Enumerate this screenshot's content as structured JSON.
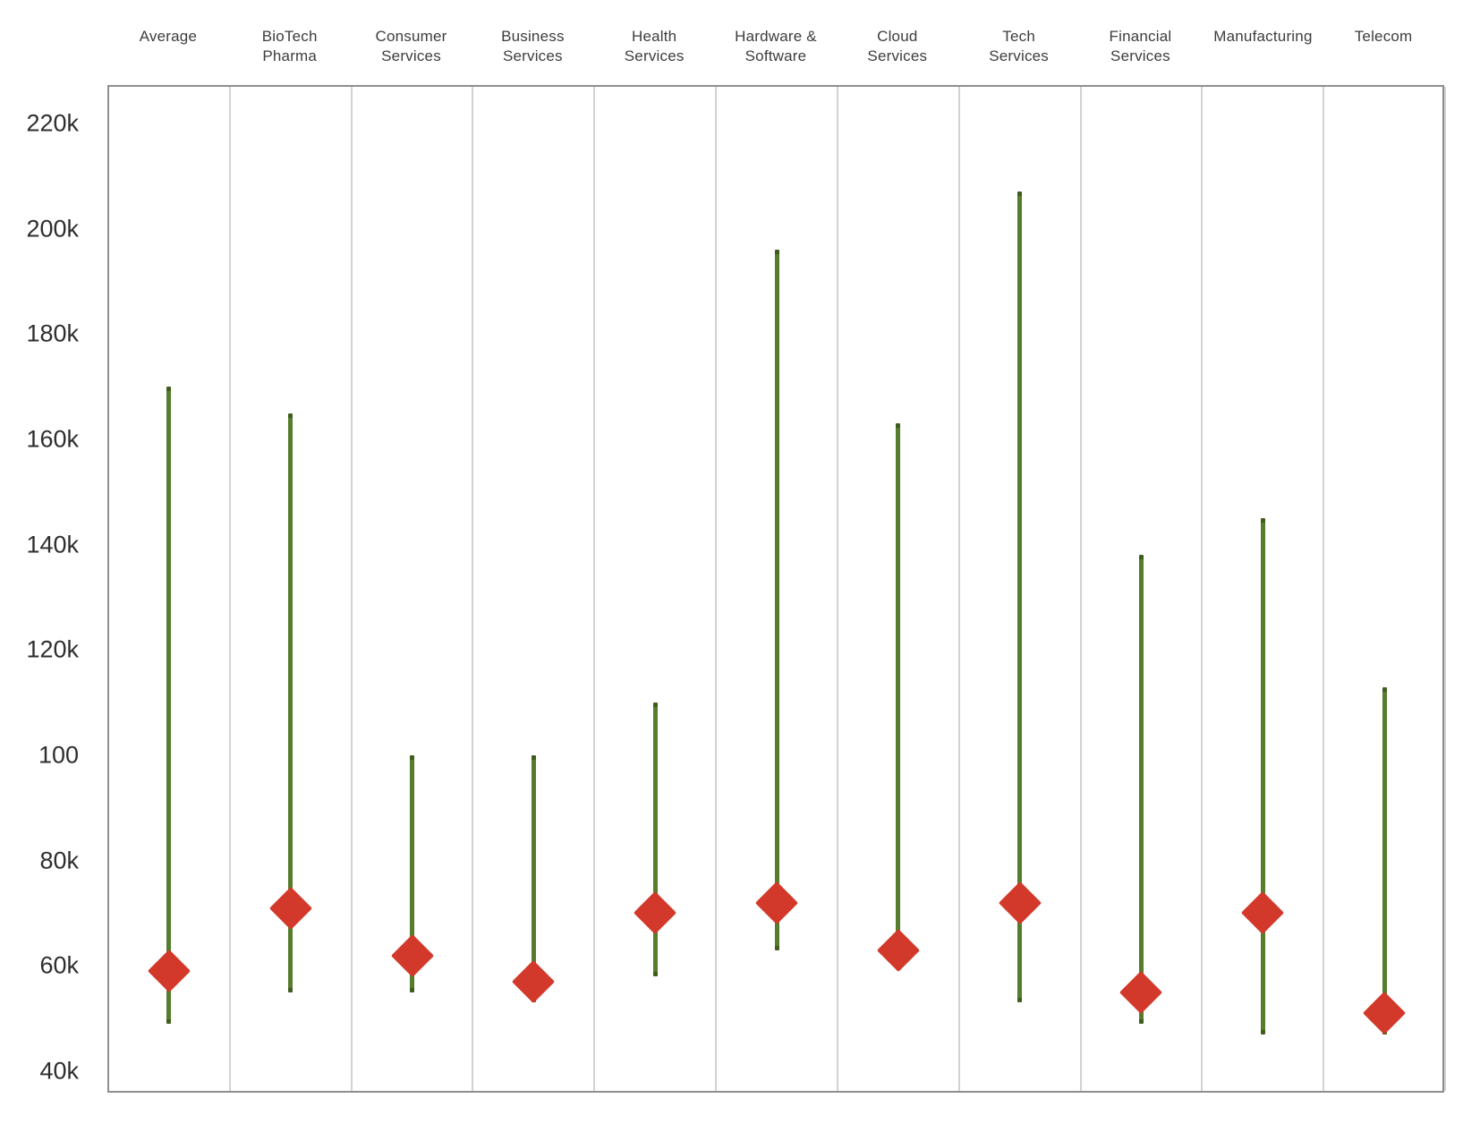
{
  "chart_data": {
    "type": "scatter",
    "subtype": "vertical-range-lines-with-diamond-markers",
    "title": "",
    "xlabel": "",
    "ylabel": "",
    "unit": "thousands (k)",
    "legend": "none",
    "grid": false,
    "categories": [
      "Average",
      "BioTech Pharma",
      "Consumer Services",
      "Business Services",
      "Health Services",
      "Hardware & Software",
      "Cloud Services",
      "Tech Services",
      "Financial Services",
      "Manufacturing",
      "Telecom"
    ],
    "series": [
      {
        "name": "range_low",
        "values": [
          49,
          55,
          55,
          53,
          58,
          63,
          60,
          53,
          49,
          47,
          47
        ]
      },
      {
        "name": "range_high",
        "values": [
          170,
          165,
          100,
          100,
          110,
          196,
          163,
          207,
          138,
          145,
          113
        ]
      },
      {
        "name": "marker",
        "values": [
          59,
          71,
          62,
          57,
          70,
          72,
          63,
          72,
          55,
          70,
          51
        ]
      }
    ],
    "y_axis": {
      "ylim": [
        36,
        227
      ],
      "ticks": [
        {
          "label": "220k",
          "value": 220
        },
        {
          "label": "200k",
          "value": 200
        },
        {
          "label": "180k",
          "value": 180
        },
        {
          "label": "160k",
          "value": 160
        },
        {
          "label": "140k",
          "value": 140
        },
        {
          "label": "120k",
          "value": 120
        },
        {
          "label": "100",
          "value": 100
        },
        {
          "label": "80k",
          "value": 80
        },
        {
          "label": "60k",
          "value": 60
        },
        {
          "label": "40k",
          "value": 40
        }
      ]
    },
    "colors": {
      "range_line": "#567d2c",
      "range_line_cap": "#3f5d1d",
      "marker": "#d2392a",
      "column_separator": "#d2d2d2",
      "plot_border": "#8e8e8e",
      "label_text": "#3d3d3d"
    }
  }
}
